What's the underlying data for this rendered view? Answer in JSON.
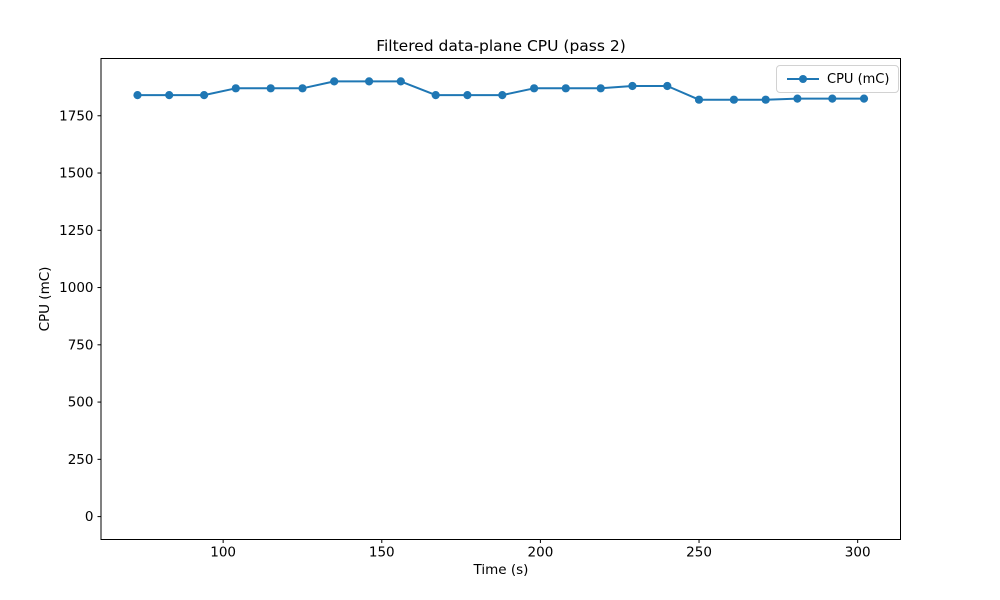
{
  "chart_data": {
    "type": "line",
    "title": "Filtered data-plane CPU (pass 2)",
    "xlabel": "Time (s)",
    "ylabel": "CPU (mC)",
    "legend": {
      "label": "CPU (mC)",
      "position": "upper right"
    },
    "series": [
      {
        "name": "CPU (mC)",
        "color": "#1f77b4",
        "marker": "circle",
        "x": [
          73,
          83,
          94,
          104,
          115,
          125,
          135,
          146,
          156,
          167,
          177,
          188,
          198,
          208,
          219,
          229,
          240,
          250,
          261,
          271,
          281,
          292,
          302
        ],
        "y": [
          1840,
          1840,
          1840,
          1870,
          1870,
          1870,
          1900,
          1900,
          1900,
          1840,
          1840,
          1840,
          1870,
          1870,
          1870,
          1880,
          1880,
          1820,
          1820,
          1820,
          1825,
          1825,
          1825
        ]
      }
    ],
    "xticks": [
      100,
      150,
      200,
      250,
      300
    ],
    "yticks": [
      0,
      250,
      500,
      750,
      1000,
      1250,
      1500,
      1750
    ],
    "xlim": [
      61.5,
      313.5
    ],
    "ylim": [
      -100,
      2000
    ],
    "grid": false,
    "axis_color": "#000000",
    "background": "#ffffff"
  }
}
